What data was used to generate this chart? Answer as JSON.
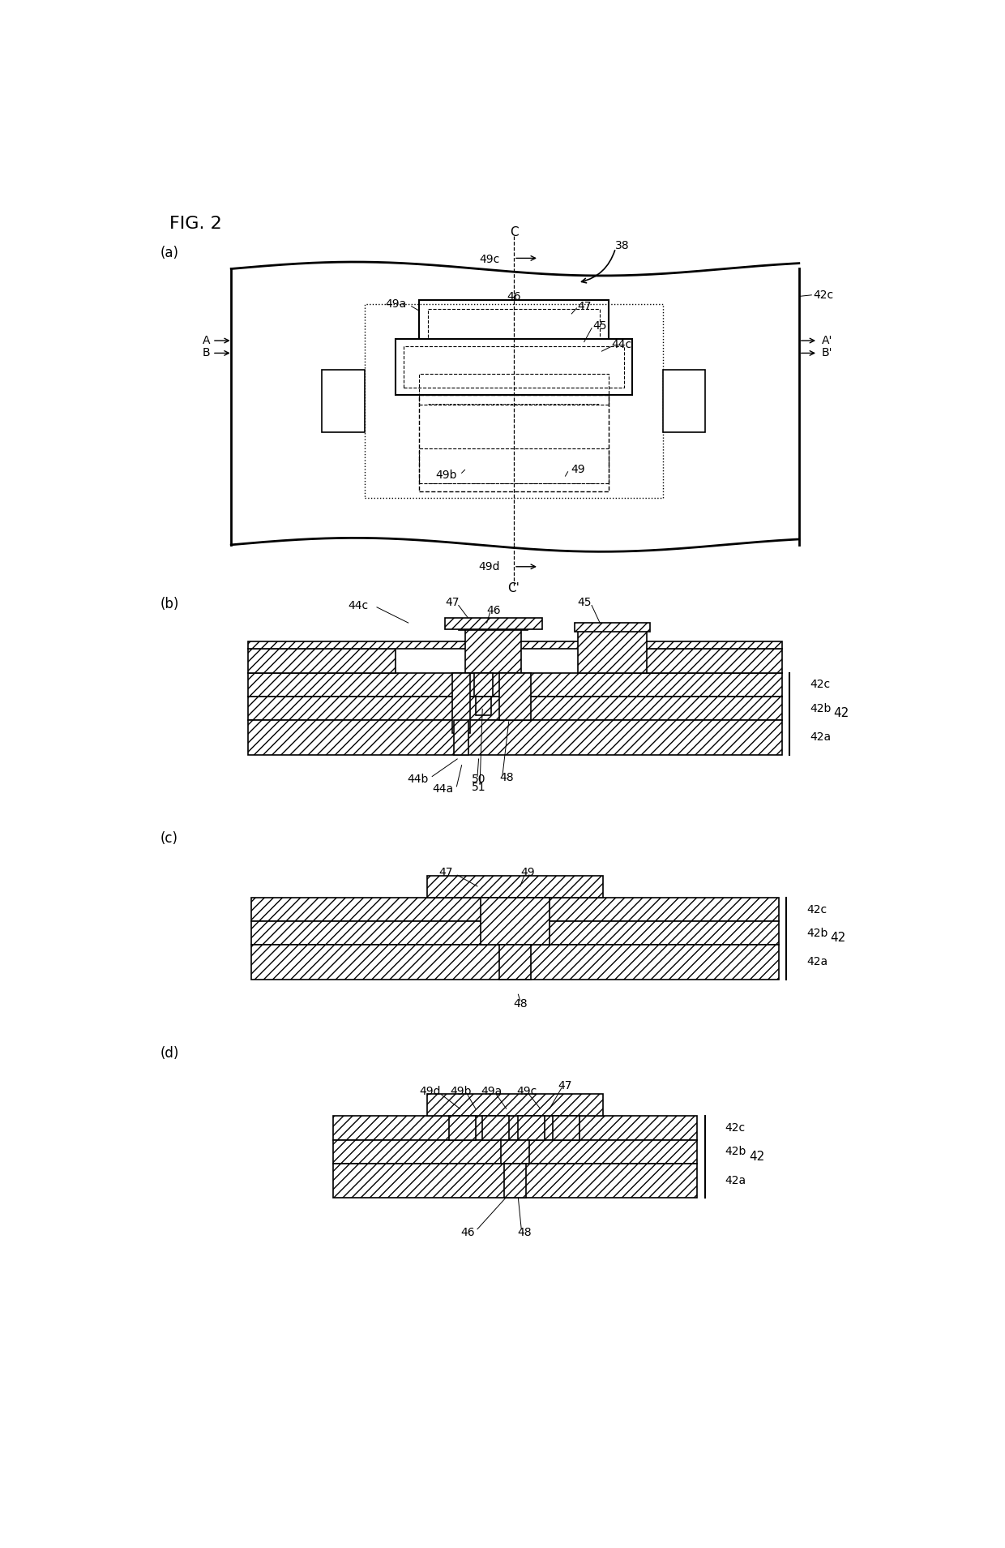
{
  "fig_title": "FIG. 2",
  "panels": [
    "(a)",
    "(b)",
    "(c)",
    "(d)"
  ],
  "hatch": "///",
  "lw_thick": 1.5,
  "lw_thin": 0.8,
  "fs_label": 10,
  "fs_panel": 12,
  "fs_title": 16
}
